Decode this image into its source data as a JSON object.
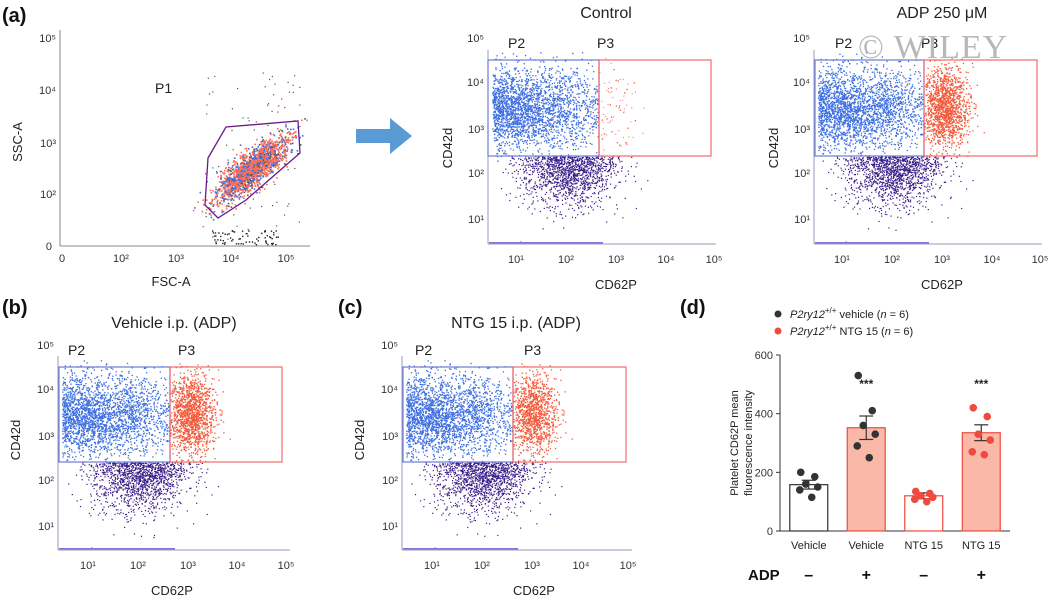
{
  "watermark": "© WILEY",
  "panel_a": {
    "label": "(a)",
    "scatter": {
      "xlabel": "FSC-A",
      "ylabel": "SSC-A",
      "xticks": [
        "0",
        "10²",
        "10³",
        "10⁴",
        "10⁵"
      ],
      "yticks": [
        "0",
        "10²",
        "10³",
        "10⁴",
        "10⁵"
      ],
      "gate": "P1"
    },
    "control": {
      "title": "Control",
      "xlabel": "CD62P",
      "ylabel": "CD42d",
      "gate_left": "P2",
      "gate_right": "P3",
      "xticks": [
        "10¹",
        "10²",
        "10³",
        "10⁴",
        "10⁵"
      ],
      "yticks": [
        "10¹",
        "10²",
        "10³",
        "10⁴",
        "10⁵"
      ]
    },
    "adp": {
      "title": "ADP 250 μM",
      "xlabel": "CD62P",
      "ylabel": "CD42d",
      "gate_left": "P2",
      "gate_right": "P3",
      "xticks": [
        "10¹",
        "10²",
        "10³",
        "10⁴",
        "10⁵"
      ],
      "yticks": [
        "10¹",
        "10²",
        "10³",
        "10⁴",
        "10⁵"
      ]
    }
  },
  "panel_b": {
    "label": "(b)",
    "title": "Vehicle i.p. (ADP)",
    "xlabel": "CD62P",
    "ylabel": "CD42d",
    "gate_left": "P2",
    "gate_right": "P3",
    "xticks": [
      "10¹",
      "10²",
      "10³",
      "10⁴",
      "10⁵"
    ],
    "yticks": [
      "10¹",
      "10²",
      "10³",
      "10⁴",
      "10⁵"
    ]
  },
  "panel_c": {
    "label": "(c)",
    "title": "NTG 15 i.p. (ADP)",
    "xlabel": "CD62P",
    "ylabel": "CD42d",
    "gate_left": "P2",
    "gate_right": "P3",
    "xticks": [
      "10¹",
      "10²",
      "10³",
      "10⁴",
      "10⁵"
    ],
    "yticks": [
      "10¹",
      "10²",
      "10³",
      "10⁴",
      "10⁵"
    ]
  },
  "panel_d": {
    "label": "(d)",
    "legend": [
      {
        "gene": "P2ry12",
        "sup": "+/+",
        "rest": " vehicle (",
        "n_label": "n",
        "n_value": " = 6)",
        "color": "#333333"
      },
      {
        "gene": "P2ry12",
        "sup": "+/+",
        "rest": " NTG 15 (",
        "n_label": "n",
        "n_value": " = 6)",
        "color": "#ef4a3e"
      }
    ],
    "adp_label": "ADP",
    "adp_signs": [
      "–",
      "+",
      "–",
      "+"
    ]
  },
  "chart_data": {
    "type": "bar",
    "ylabel": "Platelet CD62P mean fluorescence intensity",
    "ylim": [
      0,
      600
    ],
    "yticks": [
      0,
      200,
      400,
      600
    ],
    "ytick_labels": [
      "0",
      "200",
      "400",
      "600"
    ],
    "categories": [
      "Vehicle",
      "Vehicle",
      "NTG 15",
      "NTG 15"
    ],
    "adp": [
      "–",
      "+",
      "–",
      "+"
    ],
    "values": [
      158,
      352,
      120,
      335
    ],
    "errors": [
      15,
      40,
      10,
      27
    ],
    "bar_fill": [
      "#ffffff",
      "#f9b8a8",
      "#ffffff",
      "#f9b8a8"
    ],
    "bar_edge": [
      "#333333",
      "#ef4a3e",
      "#ef4a3e",
      "#ef4a3e"
    ],
    "dot_color": [
      "#333333",
      "#333333",
      "#ef4a3e",
      "#ef4a3e"
    ],
    "significance": [
      "",
      "***",
      "",
      "***"
    ],
    "points": [
      [
        200,
        185,
        160,
        150,
        140,
        115
      ],
      [
        530,
        410,
        360,
        330,
        290,
        250
      ],
      [
        135,
        128,
        120,
        115,
        108,
        100
      ],
      [
        420,
        390,
        330,
        310,
        270,
        260
      ]
    ]
  }
}
